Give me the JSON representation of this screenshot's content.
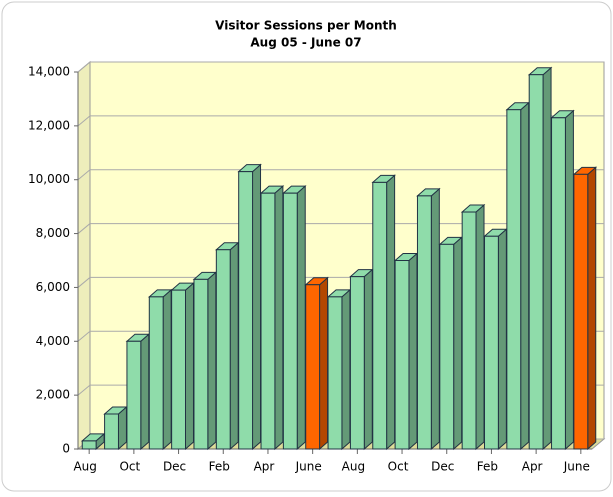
{
  "chart_data": {
    "type": "bar3d",
    "title": "Visitor Sessions per Month",
    "subtitle": "Aug 05 - June 07",
    "categories": [
      "Aug",
      null,
      "Oct",
      null,
      "Dec",
      null,
      "Feb",
      null,
      "Apr",
      null,
      "June",
      null,
      "Aug",
      null,
      "Oct",
      null,
      "Dec",
      null,
      "Feb",
      null,
      "Apr",
      null,
      "June"
    ],
    "values": [
      300,
      1300,
      4000,
      5650,
      5900,
      6300,
      7400,
      10300,
      9500,
      9500,
      6100,
      5650,
      6400,
      9900,
      7000,
      9400,
      7600,
      8800,
      7900,
      12600,
      13900,
      12300,
      10200
    ],
    "colors": [
      "#8fdcaa",
      "#8fdcaa",
      "#8fdcaa",
      "#8fdcaa",
      "#8fdcaa",
      "#8fdcaa",
      "#8fdcaa",
      "#8fdcaa",
      "#8fdcaa",
      "#8fdcaa",
      "#ff6600",
      "#8fdcaa",
      "#8fdcaa",
      "#8fdcaa",
      "#8fdcaa",
      "#8fdcaa",
      "#8fdcaa",
      "#8fdcaa",
      "#8fdcaa",
      "#8fdcaa",
      "#8fdcaa",
      "#8fdcaa",
      "#ff6600"
    ],
    "ylim": [
      0,
      14000
    ],
    "yticks": [
      0,
      {
        "value": 2000,
        "label": "2,000"
      },
      {
        "value": 4000,
        "label": "4,000"
      },
      {
        "value": 6000,
        "label": "6,000"
      },
      {
        "value": 8000,
        "label": "8,000"
      },
      {
        "value": 10000,
        "label": "10,000"
      },
      {
        "value": 12000,
        "label": "12,000"
      },
      {
        "value": 14000,
        "label": "14,000"
      }
    ],
    "grid": true
  }
}
